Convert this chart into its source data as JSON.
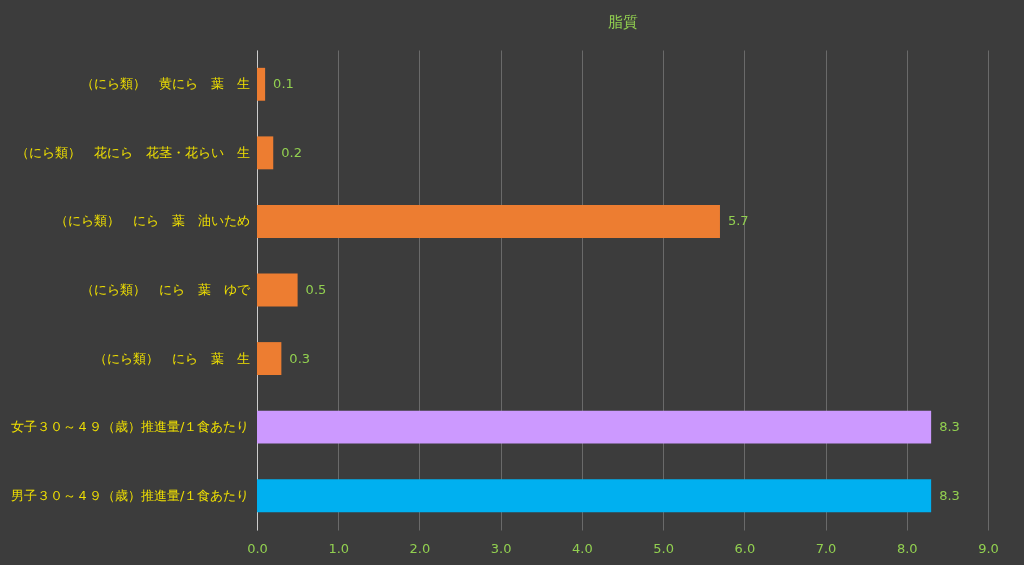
{
  "chart_data": {
    "type": "bar",
    "orientation": "horizontal",
    "title": "脂質",
    "categories": [
      "（にら類）　黄にら　葉　生",
      "（にら類）　花にら　花茎・花らい　生",
      "（にら類）　にら　葉　油いため",
      "（にら類）　にら　葉　ゆで",
      "（にら類）　にら　葉　生",
      "女子３０～４９（歳）推進量/１食あたり",
      "男子３０～４９（歳）推進量/１食あたり"
    ],
    "values": [
      0.1,
      0.2,
      5.7,
      0.5,
      0.3,
      8.3,
      8.3
    ],
    "colors": [
      "#ed7d31",
      "#ed7d31",
      "#ed7d31",
      "#ed7d31",
      "#ed7d31",
      "#cc99ff",
      "#00b0f0"
    ],
    "xlim": [
      0,
      9
    ],
    "xticks": [
      {
        "value": 0,
        "label": "0.0"
      },
      {
        "value": 1,
        "label": "1.0"
      },
      {
        "value": 2,
        "label": "2.0"
      },
      {
        "value": 3,
        "label": "3.0"
      },
      {
        "value": 4,
        "label": "4.0"
      },
      {
        "value": 5,
        "label": "5.0"
      },
      {
        "value": 6,
        "label": "6.0"
      },
      {
        "value": 7,
        "label": "7.0"
      },
      {
        "value": 8,
        "label": "8.0"
      },
      {
        "value": 9,
        "label": "9.0"
      }
    ],
    "grid": "x",
    "data_labels": true
  }
}
